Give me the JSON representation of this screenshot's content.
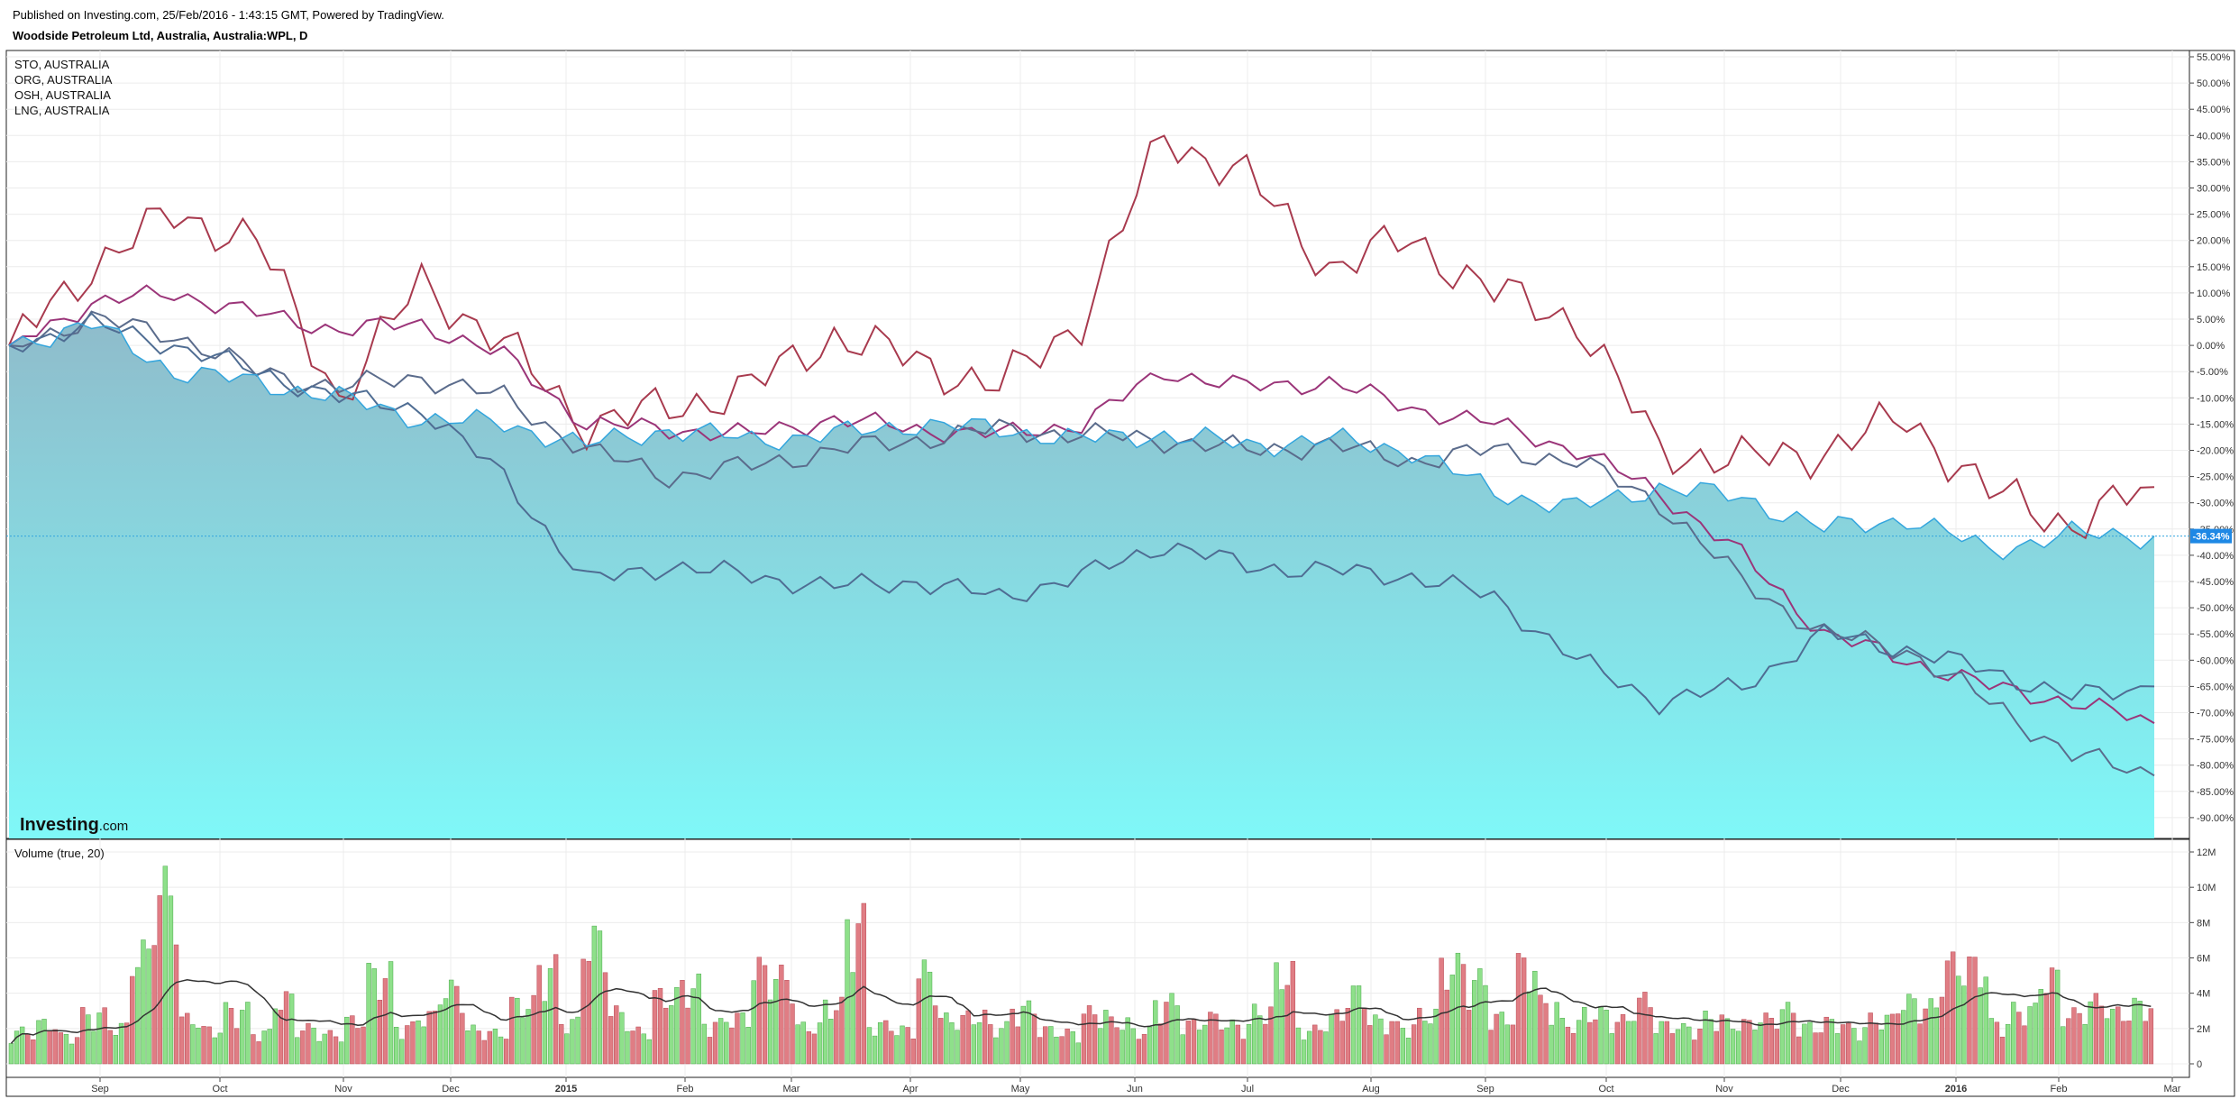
{
  "header": {
    "published_line": "Published on Investing.com, 25/Feb/2016 - 1:43:15 GMT, Powered by TradingView.",
    "title": "Woodside Petroleum Ltd, Australia, Australia:WPL, D"
  },
  "logo": {
    "main": "Investing",
    "suffix": ".com"
  },
  "colors": {
    "main_line": "#33a5dd",
    "area_top": "#8fbccb",
    "area_bottom": "#7ff8f8",
    "sto": "#a83a4e",
    "org": "#9b3579",
    "osh": "#5b6c8c",
    "lng": "#4f6d93",
    "vol_up": "#8ee08a",
    "vol_down": "#e07d84",
    "vol_ma": "#333333",
    "last_tag": "#1e88e5"
  },
  "chart_data": [
    {
      "type": "line",
      "title": "Woodside Petroleum Ltd, Australia, Australia:WPL, D",
      "y_unit": "percent change",
      "ylim": [
        -92,
        56
      ],
      "x_tick_labels": [
        "Sep",
        "Oct",
        "Nov",
        "Dec",
        "2015",
        "Feb",
        "Mar",
        "Apr",
        "May",
        "Jun",
        "Jul",
        "Aug",
        "Sep",
        "Oct",
        "Nov",
        "Dec",
        "2016",
        "Feb",
        "Mar"
      ],
      "y_tick_labels": [
        "55.00%",
        "50.00%",
        "45.00%",
        "40.00%",
        "35.00%",
        "30.00%",
        "25.00%",
        "20.00%",
        "15.00%",
        "10.00%",
        "5.00%",
        "0.00%",
        "-5.00%",
        "-10.00%",
        "-15.00%",
        "-20.00%",
        "-25.00%",
        "-30.00%",
        "-35.00%",
        "-40.00%",
        "-45.00%",
        "-50.00%",
        "-55.00%",
        "-60.00%",
        "-65.00%",
        "-70.00%",
        "-75.00%",
        "-80.00%",
        "-85.00%",
        "-90.00%"
      ],
      "last_value_label": "-36.34%",
      "legend_position": "top-left",
      "x_index": [
        0,
        15,
        30,
        45,
        60,
        75,
        90,
        105,
        120,
        135,
        150,
        165,
        180,
        195,
        210,
        225,
        240,
        255,
        270,
        285,
        300,
        315,
        330,
        345,
        360,
        375,
        390
      ],
      "series": [
        {
          "name": "WPL",
          "role": "main",
          "values": [
            0,
            4,
            -5,
            -7,
            -10,
            -14,
            -15,
            -19,
            -16,
            -18,
            -17,
            -15,
            -16,
            -18,
            -17,
            -19,
            -18,
            -20,
            -28,
            -31,
            -27,
            -29,
            -35,
            -33,
            -39,
            -36,
            -36.34
          ]
        },
        {
          "name": "STO, AUSTRALIA",
          "values": [
            0,
            15,
            25,
            20,
            -10,
            12,
            0,
            -15,
            -12,
            -8,
            2,
            -3,
            -8,
            5,
            40,
            32,
            15,
            20,
            10,
            5,
            -20,
            -22,
            -20,
            -14,
            -28,
            -34,
            -27
          ]
        },
        {
          "name": "ORG, AUSTRALIA",
          "values": [
            0,
            8,
            10,
            6,
            3,
            4,
            -2,
            -15,
            -16,
            -17,
            -14,
            -16,
            -17,
            -15,
            -5,
            -8,
            -7,
            -12,
            -15,
            -20,
            -28,
            -40,
            -55,
            -60,
            -65,
            -68,
            -72
          ]
        },
        {
          "name": "OSH, AUSTRALIA",
          "values": [
            0,
            5,
            2,
            -5,
            -8,
            -6,
            -10,
            -20,
            -25,
            -23,
            -20,
            -18,
            -16,
            -17,
            -18,
            -20,
            -19,
            -22,
            -20,
            -22,
            -30,
            -45,
            -55,
            -58,
            -68,
            -78,
            -82
          ]
        },
        {
          "name": "LNG, AUSTRALIA",
          "values": [
            0,
            4,
            0,
            -5,
            -10,
            -12,
            -25,
            -45,
            -42,
            -44,
            -46,
            -45,
            -48,
            -44,
            -38,
            -42,
            -43,
            -44,
            -48,
            -60,
            -68,
            -65,
            -55,
            -58,
            -62,
            -67,
            -65
          ]
        }
      ]
    },
    {
      "type": "bar",
      "title": "Volume (true, 20)",
      "y_unit": "shares",
      "ylim": [
        0,
        12500000
      ],
      "y_tick_labels": [
        "12M",
        "10M",
        "8M",
        "6M",
        "4M",
        "2M",
        "0"
      ],
      "volume_millions_sample": [
        2.1,
        2.6,
        1.8,
        3.2,
        2.4,
        7.1,
        11.2,
        2.9,
        2.2,
        3.5,
        2.0,
        4.2,
        2.3,
        1.9,
        2.8,
        5.8,
        2.4,
        3.1,
        4.8,
        2.2,
        2.0,
        3.9,
        6.2,
        2.7,
        8.0,
        3.3,
        2.1,
        4.4,
        5.1,
        2.6,
        3.0,
        6.1,
        5.6,
        2.4,
        3.8,
        9.1,
        2.5,
        2.2,
        5.9,
        2.9,
        3.1,
        2.4,
        3.6,
        2.2,
        2.0,
        3.3,
        2.7,
        2.1,
        4.0,
        2.6,
        3.0,
        2.5,
        3.4,
        5.9,
        2.2,
        3.1,
        4.6,
        2.8,
        2.4,
        3.2,
        6.3,
        5.4,
        3.0,
        6.4,
        3.9,
        2.6,
        3.3,
        2.8,
        4.1,
        2.5,
        2.3,
        3.0,
        2.6,
        2.9,
        3.5,
        2.4,
        2.7,
        2.3,
        2.9,
        4.0,
        3.7,
        6.4,
        6.3,
        2.6,
        3.5,
        5.6,
        3.2,
        4.0,
        3.3,
        3.8
      ]
    }
  ]
}
